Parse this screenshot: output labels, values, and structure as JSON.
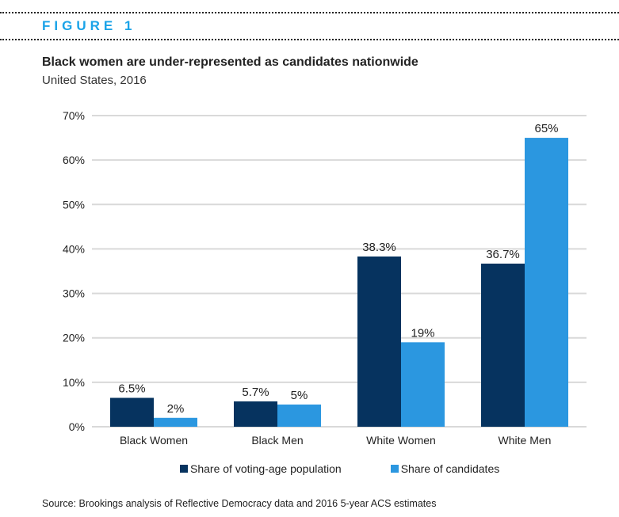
{
  "header": {
    "figure_label": "FIGURE 1"
  },
  "chart_data": {
    "type": "bar",
    "title": "Black women are under-represented as candidates nationwide",
    "subtitle": "United States, 2016",
    "categories": [
      "Black Women",
      "Black Men",
      "White Women",
      "White Men"
    ],
    "series": [
      {
        "name": "Share of voting-age population",
        "color": "#06335f",
        "values": [
          6.5,
          5.7,
          38.3,
          36.7
        ],
        "labels": [
          "6.5%",
          "5.7%",
          "38.3%",
          "36.7%"
        ]
      },
      {
        "name": "Share of candidates",
        "color": "#2b97e0",
        "values": [
          2,
          5,
          19,
          65
        ],
        "labels": [
          "2%",
          "5%",
          "19%",
          "65%"
        ]
      }
    ],
    "xlabel": "",
    "ylabel": "",
    "ylim": [
      0,
      70
    ],
    "yticks": [
      0,
      10,
      20,
      30,
      40,
      50,
      60,
      70
    ],
    "ytick_labels": [
      "0%",
      "10%",
      "20%",
      "30%",
      "40%",
      "50%",
      "60%",
      "70%"
    ],
    "grid": true,
    "gridline_color": "#d9d9d9",
    "legend_position": "bottom"
  },
  "source": "Source: Brookings analysis of Reflective Democracy data and 2016 5-year ACS estimates"
}
